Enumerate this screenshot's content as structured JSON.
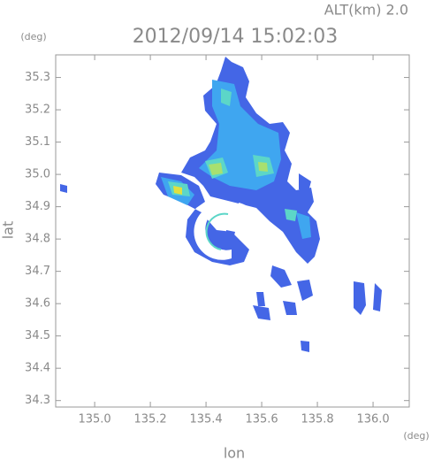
{
  "chart_data": {
    "type": "map",
    "title": "2012/09/14 15:02:03",
    "subtitle": "ALT(km)  2.0",
    "x_label": "lon",
    "y_label": "lat",
    "x_unit": "(deg)",
    "y_unit": "(deg)",
    "xlim": [
      134.86,
      136.13
    ],
    "ylim": [
      34.28,
      35.37
    ],
    "xticks": [
      {
        "value": 135,
        "label": "135.0"
      },
      135.2,
      135.4,
      135.6,
      135.8,
      {
        "value": 136,
        "label": "136.0"
      }
    ],
    "yticks": [
      34.3,
      34.4,
      34.5,
      34.6,
      34.7,
      34.8,
      34.9,
      {
        "value": 35,
        "label": "35.0"
      },
      35.1,
      35.2,
      35.3
    ]
  }
}
